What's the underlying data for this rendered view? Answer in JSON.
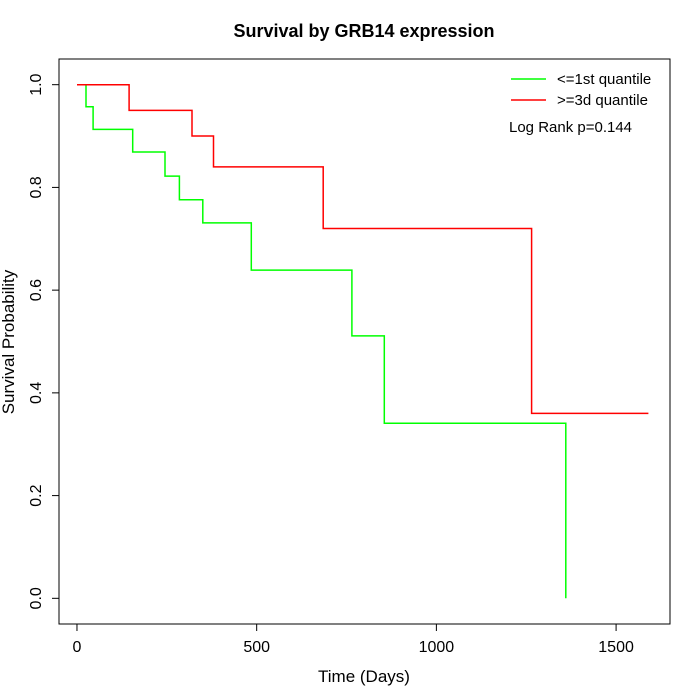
{
  "chart_data": {
    "type": "line",
    "step": true,
    "title": "Survival by GRB14 expression",
    "xlabel": "Time (Days)",
    "ylabel": "Survival Probability",
    "xlim": [
      -50,
      1650
    ],
    "ylim": [
      -0.05,
      1.05
    ],
    "x_ticks": [
      0,
      500,
      1000,
      1500
    ],
    "x_tick_labels": [
      "0",
      "500",
      "1000",
      "1500"
    ],
    "y_ticks": [
      0.0,
      0.2,
      0.4,
      0.6,
      0.8,
      1.0
    ],
    "y_tick_labels": [
      "0.0",
      "0.2",
      "0.4",
      "0.6",
      "0.8",
      "1.0"
    ],
    "legend_position": "top-right",
    "annotation": "Log Rank p=0.144",
    "series": [
      {
        "name": "<=1st quantile",
        "color": "#00ff00",
        "x": [
          0,
          25,
          25,
          45,
          45,
          155,
          155,
          245,
          245,
          285,
          285,
          350,
          350,
          485,
          485,
          765,
          765,
          855,
          855,
          1360,
          1360
        ],
        "y": [
          1.0,
          1.0,
          0.957,
          0.957,
          0.913,
          0.913,
          0.869,
          0.869,
          0.822,
          0.822,
          0.776,
          0.776,
          0.731,
          0.731,
          0.639,
          0.639,
          0.511,
          0.511,
          0.341,
          0.341,
          0.0
        ]
      },
      {
        "name": ">=3d quantile",
        "color": "#ff0000",
        "x": [
          0,
          145,
          145,
          320,
          320,
          380,
          380,
          685,
          685,
          1265,
          1265,
          1590
        ],
        "y": [
          1.0,
          1.0,
          0.95,
          0.95,
          0.9,
          0.9,
          0.84,
          0.84,
          0.72,
          0.72,
          0.36,
          0.36
        ]
      }
    ]
  }
}
